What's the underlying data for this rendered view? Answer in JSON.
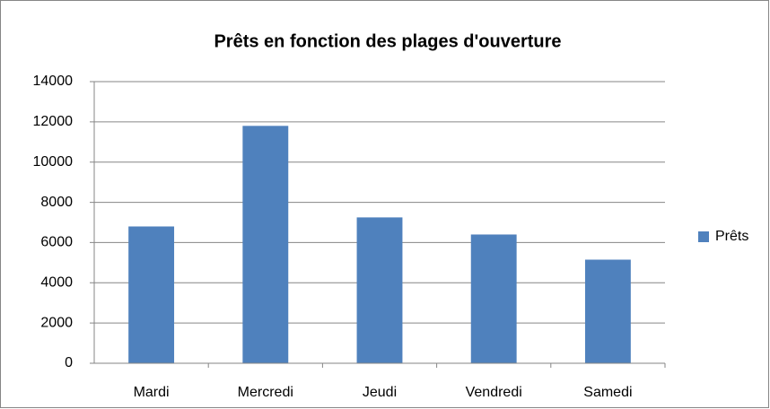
{
  "chart_data": {
    "type": "bar",
    "title": "Prêts en fonction des plages d'ouverture",
    "categories": [
      "Mardi",
      "Mercredi",
      "Jeudi",
      "Vendredi",
      "Samedi"
    ],
    "series": [
      {
        "name": "Prêts",
        "color": "#4f81bd",
        "values": [
          6800,
          11800,
          7250,
          6400,
          5150
        ]
      }
    ],
    "ylim": [
      0,
      14000
    ],
    "yticks": [
      0,
      2000,
      4000,
      6000,
      8000,
      10000,
      12000,
      14000
    ],
    "grid": true,
    "legend": "right"
  }
}
